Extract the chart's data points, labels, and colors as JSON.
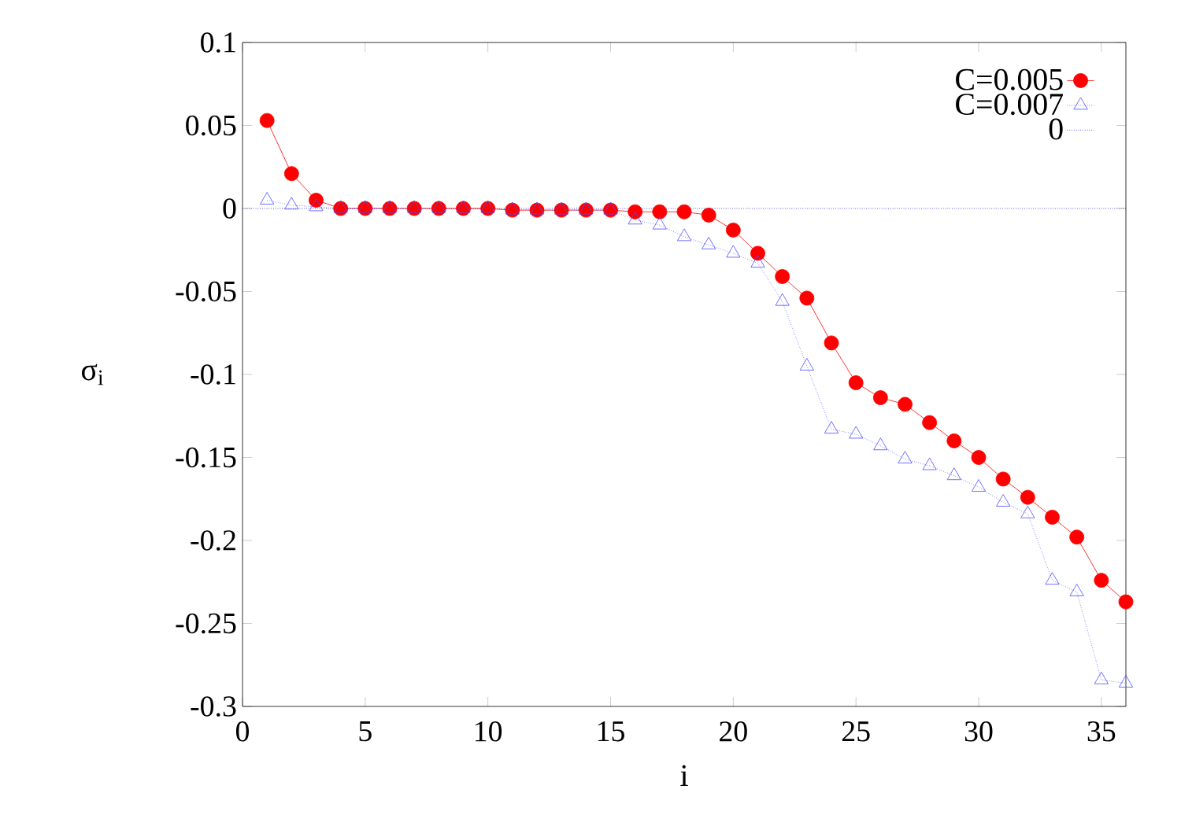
{
  "chart_data": {
    "type": "line",
    "xlabel": "i",
    "ylabel": "σ$_{i}$",
    "xlim": [
      0,
      36
    ],
    "ylim": [
      -0.3,
      0.1
    ],
    "xticks": [
      0,
      5,
      10,
      15,
      20,
      25,
      30,
      35
    ],
    "yticks": [
      -0.3,
      -0.25,
      -0.2,
      -0.15,
      -0.1,
      -0.05,
      0,
      0.05,
      0.1
    ],
    "x": [
      1,
      2,
      3,
      4,
      5,
      6,
      7,
      8,
      9,
      10,
      11,
      12,
      13,
      14,
      15,
      16,
      17,
      18,
      19,
      20,
      21,
      22,
      23,
      24,
      25,
      26,
      27,
      28,
      29,
      30,
      31,
      32,
      33,
      34,
      35,
      36
    ],
    "legend": "top right",
    "grid": false,
    "series": [
      {
        "name": "C=0.005",
        "color": "#ff0000",
        "marker": "circle",
        "line_style": "solid",
        "values": [
          0.053,
          0.021,
          0.005,
          0,
          0,
          0,
          0,
          0,
          0,
          0,
          -0.001,
          -0.001,
          -0.001,
          -0.001,
          -0.001,
          -0.002,
          -0.002,
          -0.002,
          -0.004,
          -0.013,
          -0.027,
          -0.041,
          -0.054,
          -0.081,
          -0.105,
          -0.114,
          -0.118,
          -0.129,
          -0.14,
          -0.15,
          -0.163,
          -0.174,
          -0.186,
          -0.198,
          -0.224,
          -0.237
        ]
      },
      {
        "name": "C=0.007",
        "color": "#4d4dff",
        "marker": "triangle",
        "line_style": "dotted",
        "values": [
          0.005,
          0.002,
          0.001,
          0,
          0,
          0,
          0,
          0,
          0,
          0,
          -0.001,
          -0.001,
          -0.001,
          -0.001,
          -0.001,
          -0.007,
          -0.01,
          -0.017,
          -0.022,
          -0.027,
          -0.033,
          -0.056,
          -0.095,
          -0.133,
          -0.136,
          -0.143,
          -0.151,
          -0.155,
          -0.161,
          -0.168,
          -0.177,
          -0.184,
          -0.224,
          -0.231,
          -0.284,
          -0.286
        ]
      }
    ],
    "ref_lines": [
      {
        "axis": "y",
        "value": 0,
        "label": "0",
        "color": "#0000cc",
        "line_style": "dotted"
      }
    ]
  }
}
